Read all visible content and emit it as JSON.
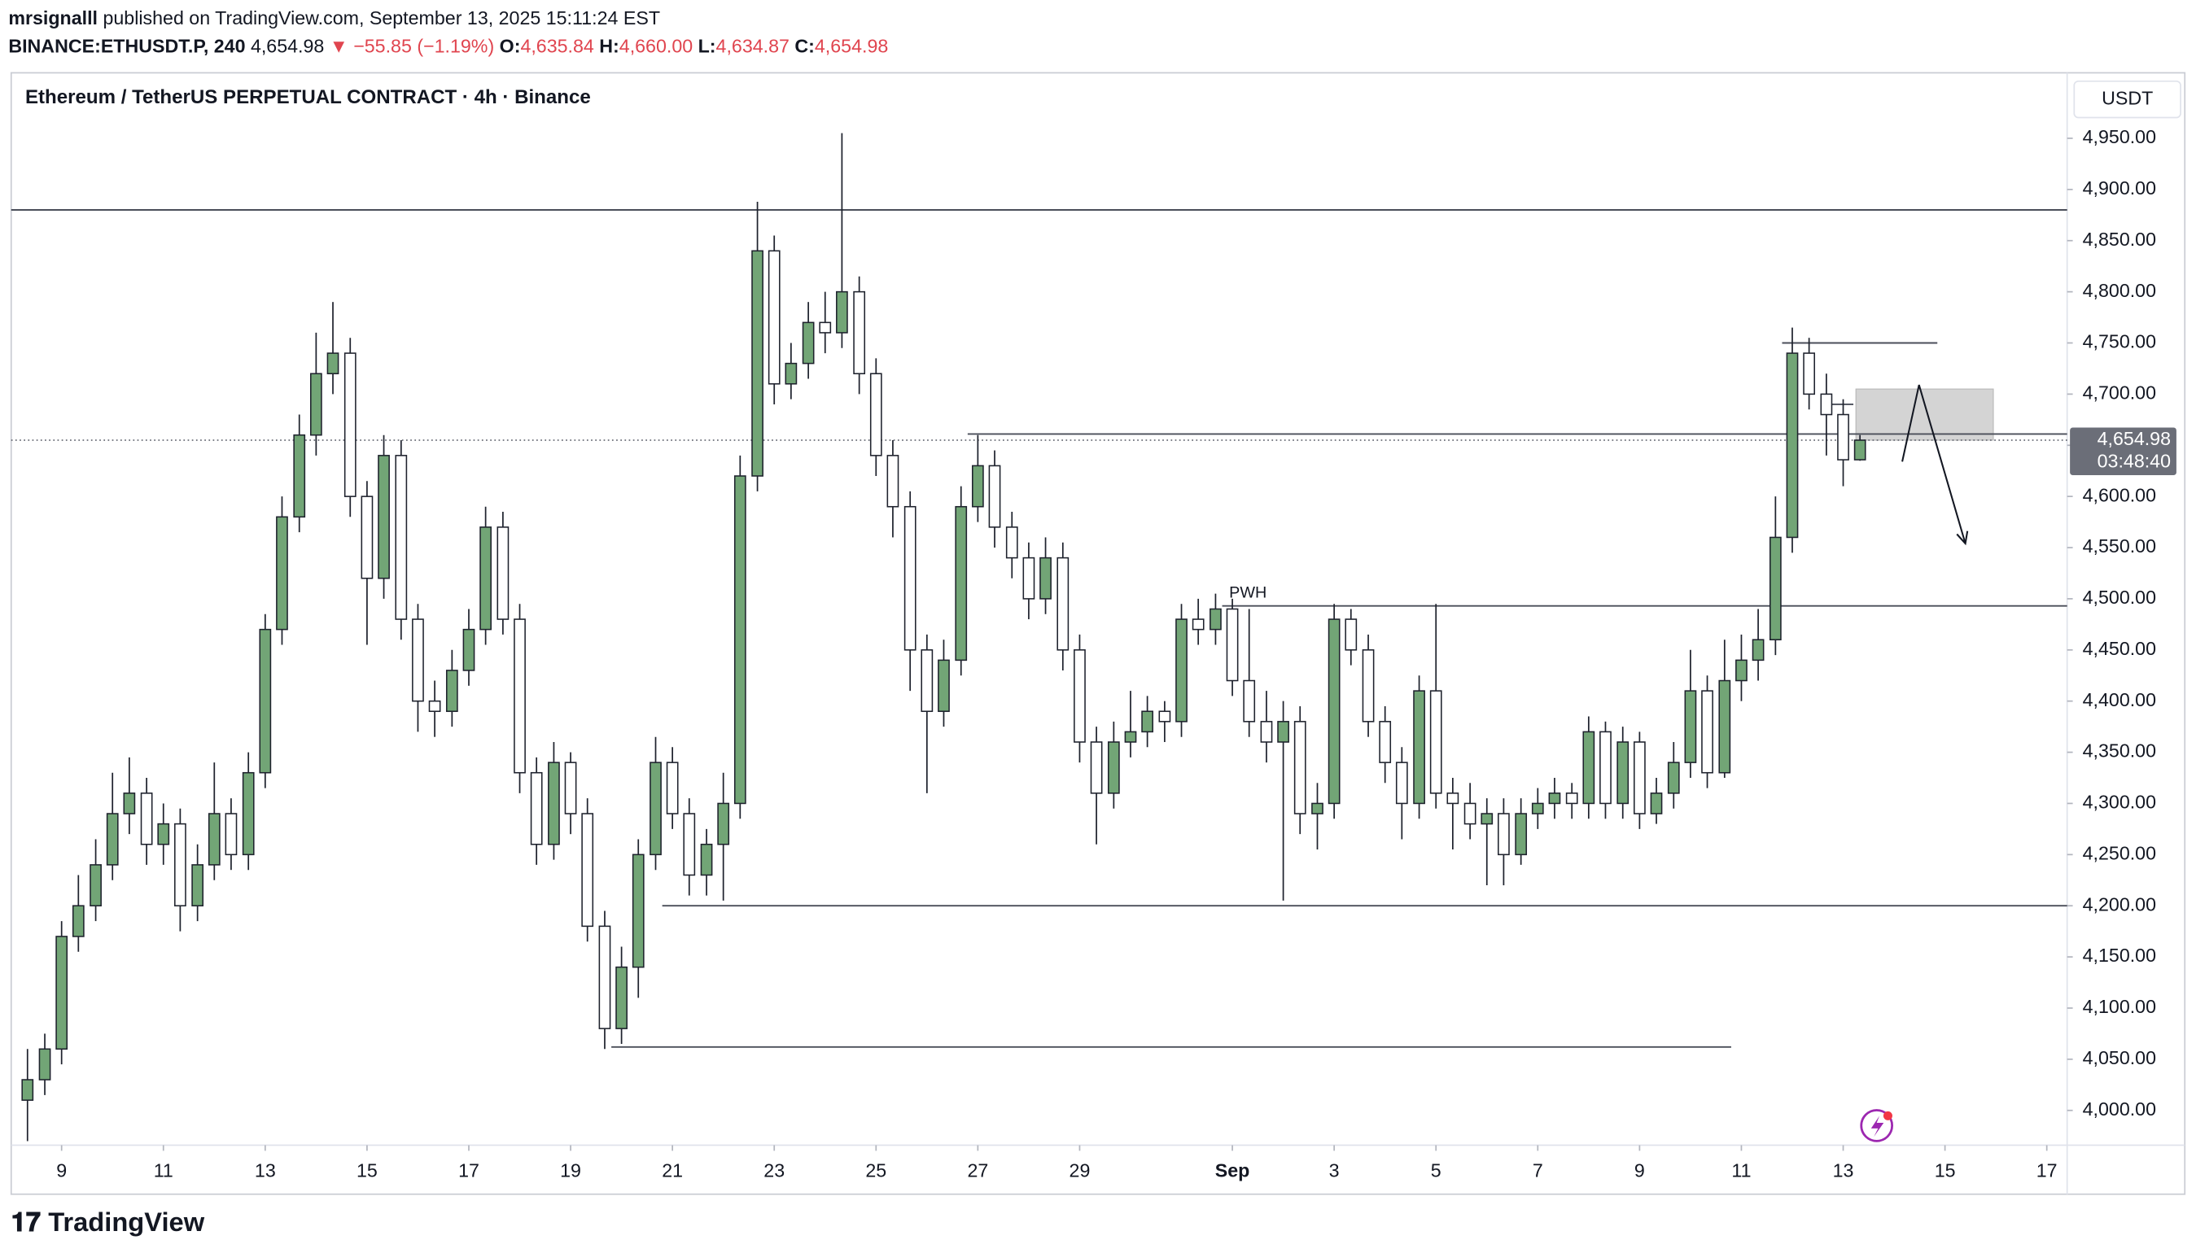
{
  "header": {
    "author": "mrsignalll",
    "published": "published on TradingView.com, September 13, 2025 15:11:24 EST",
    "symbol": "BINANCE:ETHUSDT.P, 240",
    "price": "4,654.98",
    "change": "▼ −55.85 (−1.19%)",
    "ohlc": [
      {
        "key": "O:",
        "value": "4,635.84"
      },
      {
        "key": "H:",
        "value": "4,660.00"
      },
      {
        "key": "L:",
        "value": "4,634.87"
      },
      {
        "key": "C:",
        "value": "4,654.98"
      }
    ]
  },
  "brand": "TradingView",
  "chart_data": {
    "type": "candlestick",
    "title": "Ethereum / TetherUS PERPETUAL CONTRACT · 4h · Binance",
    "currency": "USDT",
    "up_color": "#72a576",
    "down_color": "#ffffff",
    "outline_color": "#1e222d",
    "x": [
      8.33,
      8.67,
      9,
      9.33,
      9.67,
      10,
      10.33,
      10.67,
      11,
      11.33,
      11.67,
      12,
      12.33,
      12.67,
      13,
      13.33,
      13.67,
      14,
      14.33,
      14.67,
      15,
      15.33,
      15.67,
      16,
      16.33,
      16.67,
      17,
      17.33,
      17.67,
      18,
      18.33,
      18.67,
      19,
      19.33,
      19.67,
      20,
      20.33,
      20.67,
      21,
      21.33,
      21.67,
      22,
      22.33,
      22.67,
      23,
      23.33,
      23.67,
      24,
      24.33,
      24.67,
      25,
      25.33,
      25.67,
      26,
      26.33,
      26.67,
      27,
      27.33,
      27.67,
      28,
      28.33,
      28.67,
      29,
      29.33,
      29.67,
      30,
      30.33,
      30.67,
      31,
      31.33,
      31.67,
      32,
      32.33,
      32.67,
      33,
      33.33,
      33.67,
      34,
      34.33,
      34.67,
      35,
      35.33,
      35.67,
      36,
      36.33,
      36.67,
      37,
      37.33,
      37.67,
      38,
      38.33,
      38.67,
      39,
      39.33,
      39.67,
      40,
      40.33,
      40.67,
      41,
      41.33,
      41.67,
      42,
      42.33,
      42.67,
      43,
      43.33,
      43.67,
      44,
      44.33
    ],
    "open": [
      4010,
      4030,
      4060,
      4170,
      4200,
      4240,
      4290,
      4310,
      4260,
      4280,
      4200,
      4240,
      4290,
      4250,
      4330,
      4470,
      4580,
      4660,
      4720,
      4740,
      4600,
      4520,
      4640,
      4480,
      4400,
      4390,
      4430,
      4470,
      4570,
      4480,
      4330,
      4260,
      4340,
      4290,
      4180,
      4080,
      4140,
      4250,
      4340,
      4290,
      4230,
      4260,
      4300,
      4620,
      4840,
      4710,
      4730,
      4770,
      4760,
      4800,
      4720,
      4640,
      4590,
      4450,
      4390,
      4440,
      4590,
      4630,
      4570,
      4540,
      4500,
      4540,
      4450,
      4360,
      4310,
      4360,
      4370,
      4390,
      4380,
      4480,
      4470,
      4490,
      4420,
      4380,
      4360,
      4380,
      4290,
      4300,
      4480,
      4450,
      4380,
      4340,
      4300,
      4410,
      4310,
      4300,
      4280,
      4290,
      4250,
      4290,
      4300,
      4310,
      4300,
      4370,
      4300,
      4360,
      4290,
      4310,
      4340,
      4410,
      4330,
      4420,
      4440,
      4460,
      4560,
      4740,
      4700,
      4680,
      4635.84
    ],
    "high": [
      4060,
      4075,
      4185,
      4230,
      4265,
      4330,
      4345,
      4325,
      4300,
      4295,
      4260,
      4340,
      4305,
      4350,
      4485,
      4600,
      4680,
      4760,
      4790,
      4755,
      4615,
      4660,
      4655,
      4495,
      4420,
      4450,
      4490,
      4590,
      4585,
      4495,
      4345,
      4360,
      4350,
      4305,
      4195,
      4160,
      4265,
      4365,
      4355,
      4305,
      4275,
      4330,
      4640,
      4888,
      4855,
      4750,
      4790,
      4800,
      4955,
      4815,
      4735,
      4655,
      4605,
      4465,
      4460,
      4610,
      4660,
      4645,
      4585,
      4555,
      4560,
      4555,
      4465,
      4375,
      4380,
      4410,
      4405,
      4400,
      4495,
      4500,
      4505,
      4500,
      4490,
      4410,
      4400,
      4395,
      4320,
      4495,
      4490,
      4465,
      4395,
      4355,
      4425,
      4495,
      4325,
      4320,
      4305,
      4305,
      4305,
      4315,
      4325,
      4320,
      4385,
      4380,
      4375,
      4370,
      4325,
      4360,
      4450,
      4425,
      4460,
      4465,
      4490,
      4600,
      4765,
      4755,
      4720,
      4695,
      4660
    ],
    "low": [
      3970,
      4015,
      4045,
      4155,
      4185,
      4225,
      4270,
      4240,
      4240,
      4175,
      4185,
      4225,
      4235,
      4235,
      4315,
      4455,
      4565,
      4640,
      4700,
      4580,
      4455,
      4500,
      4460,
      4370,
      4365,
      4375,
      4415,
      4455,
      4465,
      4310,
      4240,
      4245,
      4270,
      4165,
      4060,
      4065,
      4110,
      4235,
      4275,
      4210,
      4210,
      4205,
      4285,
      4605,
      4690,
      4695,
      4715,
      4740,
      4745,
      4700,
      4620,
      4560,
      4410,
      4310,
      4375,
      4425,
      4575,
      4550,
      4520,
      4480,
      4485,
      4430,
      4340,
      4260,
      4295,
      4345,
      4355,
      4360,
      4365,
      4455,
      4455,
      4405,
      4365,
      4340,
      4205,
      4270,
      4255,
      4285,
      4435,
      4365,
      4320,
      4265,
      4285,
      4295,
      4255,
      4265,
      4220,
      4220,
      4240,
      4275,
      4285,
      4285,
      4285,
      4285,
      4285,
      4275,
      4280,
      4295,
      4325,
      4315,
      4325,
      4400,
      4420,
      4445,
      4545,
      4685,
      4640,
      4610,
      4634.87
    ],
    "close": [
      4030,
      4060,
      4170,
      4200,
      4240,
      4290,
      4310,
      4260,
      4280,
      4200,
      4240,
      4290,
      4250,
      4330,
      4470,
      4580,
      4660,
      4720,
      4740,
      4600,
      4520,
      4640,
      4480,
      4400,
      4390,
      4430,
      4470,
      4570,
      4480,
      4330,
      4260,
      4340,
      4290,
      4180,
      4080,
      4140,
      4250,
      4340,
      4290,
      4230,
      4260,
      4300,
      4620,
      4840,
      4710,
      4730,
      4770,
      4760,
      4800,
      4720,
      4640,
      4590,
      4450,
      4390,
      4440,
      4590,
      4630,
      4570,
      4540,
      4500,
      4540,
      4450,
      4360,
      4310,
      4360,
      4370,
      4390,
      4380,
      4480,
      4470,
      4490,
      4420,
      4380,
      4360,
      4380,
      4290,
      4300,
      4480,
      4450,
      4380,
      4340,
      4300,
      4410,
      4310,
      4300,
      4280,
      4290,
      4250,
      4290,
      4300,
      4310,
      4300,
      4370,
      4300,
      4360,
      4290,
      4310,
      4340,
      4410,
      4330,
      4420,
      4440,
      4460,
      4560,
      4740,
      4700,
      4680,
      4635.84,
      4654.98
    ],
    "xlim": [
      8.01,
      48.4
    ],
    "ylim": [
      3966,
      5014
    ],
    "xticks": [
      9,
      11,
      13,
      15,
      17,
      19,
      21,
      23,
      25,
      27,
      29,
      {
        "value": 32,
        "label": "Sep"
      },
      {
        "value": 34,
        "label": "3"
      },
      {
        "value": 36,
        "label": "5"
      },
      {
        "value": 38,
        "label": "7"
      },
      {
        "value": 40,
        "label": "9"
      },
      {
        "value": 42,
        "label": "11"
      },
      {
        "value": 44,
        "label": "13"
      },
      {
        "value": 46,
        "label": "15"
      },
      {
        "value": 48,
        "label": "17"
      }
    ],
    "yticks": [
      {
        "value": 4000,
        "label": "4,000.00"
      },
      {
        "value": 4050,
        "label": "4,050.00"
      },
      {
        "value": 4100,
        "label": "4,100.00"
      },
      {
        "value": 4150,
        "label": "4,150.00"
      },
      {
        "value": 4200,
        "label": "4,200.00"
      },
      {
        "value": 4250,
        "label": "4,250.00"
      },
      {
        "value": 4300,
        "label": "4,300.00"
      },
      {
        "value": 4350,
        "label": "4,350.00"
      },
      {
        "value": 4400,
        "label": "4,400.00"
      },
      {
        "value": 4450,
        "label": "4,450.00"
      },
      {
        "value": 4500,
        "label": "4,500.00"
      },
      {
        "value": 4550,
        "label": "4,550.00"
      },
      {
        "value": 4600,
        "label": "4,600.00"
      },
      {
        "value": 4650,
        "label": "4,650.00"
      },
      {
        "value": 4700,
        "label": "4,700.00"
      },
      {
        "value": 4750,
        "label": "4,750.00"
      },
      {
        "value": 4800,
        "label": "4,800.00"
      },
      {
        "value": 4850,
        "label": "4,850.00"
      },
      {
        "value": 4900,
        "label": "4,900.00"
      },
      {
        "value": 4950,
        "label": "4,950.00"
      }
    ],
    "last_price": {
      "value": 4654.98,
      "label": "4,654.98",
      "countdown": "03:48:40"
    },
    "levels": [
      {
        "value": 4880,
        "from": 8.01,
        "to": 48.4
      },
      {
        "value": 4661,
        "from": 26.8,
        "to": 48.4
      },
      {
        "value": 4493,
        "from": 31.8,
        "to": 48.4,
        "label": "PWH"
      },
      {
        "value": 4200,
        "from": 20.8,
        "to": 48.4
      },
      {
        "value": 4062,
        "from": 19.8,
        "to": 41.8
      },
      {
        "value": 4750,
        "from": 42.8,
        "to": 45.85
      },
      {
        "value": 4690,
        "from": 43.65,
        "to": 44.2
      }
    ],
    "zone": {
      "low": 4655,
      "high": 4705,
      "from": 44.25,
      "to": 46.95,
      "color": "#d4d4d4"
    },
    "projection": {
      "x": [
        45.16,
        45.49,
        46.4
      ],
      "y": [
        4634,
        4709,
        4554
      ]
    }
  }
}
